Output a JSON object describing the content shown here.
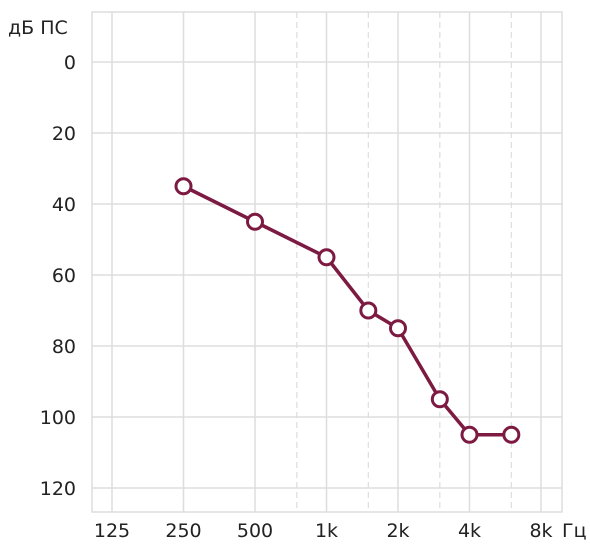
{
  "chart_data": {
    "type": "line",
    "title": "",
    "ylabel": "дБ ПС",
    "xlabel": "Гц",
    "y_inverted": true,
    "ylim": [
      0,
      120
    ],
    "y_ticks": [
      0,
      20,
      40,
      60,
      80,
      100,
      120
    ],
    "x_scale": "log2",
    "x_ticks": [
      {
        "value": 125,
        "label": "125"
      },
      {
        "value": 250,
        "label": "250"
      },
      {
        "value": 500,
        "label": "500"
      },
      {
        "value": 1000,
        "label": "1k"
      },
      {
        "value": 2000,
        "label": "2k"
      },
      {
        "value": 4000,
        "label": "4k"
      },
      {
        "value": 8000,
        "label": "8k"
      }
    ],
    "x_minor_ticks": [
      750,
      1500,
      3000,
      6000
    ],
    "grid": true,
    "series": [
      {
        "name": "",
        "color": "#7d1a42",
        "marker": "circle-open",
        "points": [
          {
            "x": 250,
            "y": 35
          },
          {
            "x": 500,
            "y": 45
          },
          {
            "x": 1000,
            "y": 55
          },
          {
            "x": 1500,
            "y": 70
          },
          {
            "x": 2000,
            "y": 75
          },
          {
            "x": 3000,
            "y": 95
          },
          {
            "x": 4000,
            "y": 105
          },
          {
            "x": 6000,
            "y": 105
          }
        ]
      }
    ]
  }
}
